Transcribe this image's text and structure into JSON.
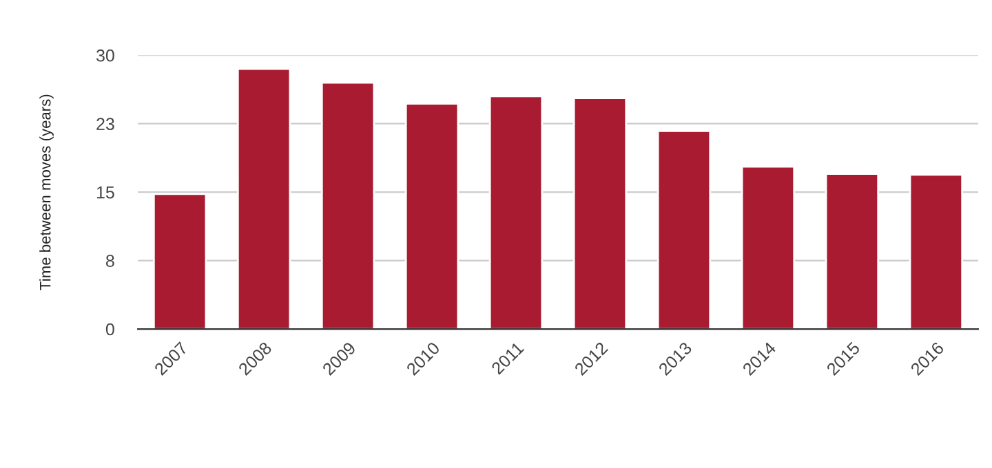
{
  "chart_data": {
    "type": "bar",
    "ylabel": "Time between moves (years)",
    "categories": [
      "2007",
      "2008",
      "2009",
      "2010",
      "2011",
      "2012",
      "2013",
      "2014",
      "2015",
      "2016"
    ],
    "values": [
      14.8,
      28.5,
      27.0,
      24.7,
      25.5,
      25.3,
      21.7,
      17.8,
      17.0,
      16.9
    ],
    "color": "#a91b30",
    "ylim": [
      0,
      30
    ],
    "yticks": [
      0,
      {
        "value": 7.5,
        "label": "8"
      },
      15,
      {
        "value": 22.5,
        "label": "23"
      },
      30
    ],
    "grid": "y",
    "legend": false
  }
}
